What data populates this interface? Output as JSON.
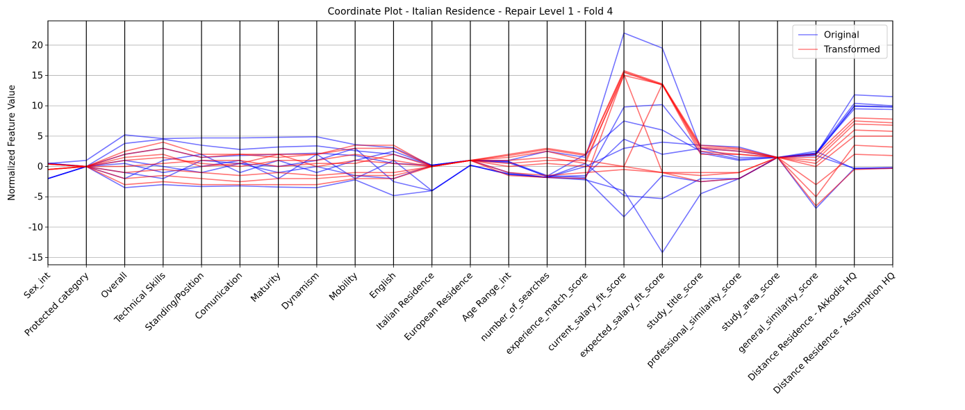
{
  "chart_data": {
    "type": "parallel_coordinates",
    "title": "Coordinate Plot - Italian Residence - Repair Level 1 - Fold 4",
    "ylabel": "Normalized Feature Value",
    "ylim": [
      -16.2,
      24.0
    ],
    "yticks": [
      -15,
      -10,
      -5,
      0,
      5,
      10,
      15,
      20
    ],
    "grid": true,
    "legend_position": "top-right",
    "axes": [
      "Sex_int",
      "Protected category",
      "Overall",
      "Technical Skills",
      "Standing/Position",
      "Comunication",
      "Maturity",
      "Dynamism",
      "Mobility",
      "English",
      "Italian Residence",
      "European Residence",
      "Age Range_int",
      "number_of_searches",
      "experience_match_score",
      "current_salary_fit_score",
      "expected_salary_fit_score",
      "study_title_score",
      "professional_similarity_score",
      "study_area_score",
      "general_similarity_score",
      "Distance Residence - Akkodis HQ",
      "Distance Residence - Assumption HQ"
    ],
    "series": [
      {
        "name": "Original",
        "color": "#0000ff",
        "lines": [
          [
            0.5,
            1.0,
            5.2,
            4.6,
            4.7,
            4.7,
            4.8,
            4.9,
            3.6,
            3.1,
            0.2,
            1.0,
            1.0,
            2.5,
            1.5,
            22.0,
            19.5,
            3.0,
            2.5,
            1.5,
            2.0,
            11.8,
            11.5
          ],
          [
            -2.0,
            0.0,
            3.8,
            4.5,
            3.5,
            2.8,
            3.2,
            3.4,
            2.6,
            2.0,
            0.2,
            1.0,
            0.8,
            -1.5,
            -1.8,
            9.8,
            10.2,
            2.2,
            1.0,
            1.5,
            2.2,
            10.4,
            10.0
          ],
          [
            0.5,
            0.0,
            2.0,
            3.0,
            1.5,
            1.8,
            2.0,
            2.2,
            1.8,
            0.5,
            0.2,
            1.0,
            0.6,
            -1.6,
            2.0,
            7.5,
            6.0,
            2.5,
            1.2,
            1.5,
            2.0,
            10.0,
            9.8
          ],
          [
            -2.0,
            0.0,
            -3.5,
            -3.0,
            -3.3,
            -3.2,
            -3.4,
            -3.5,
            -2.2,
            -4.8,
            -4.0,
            0.2,
            -1.3,
            -1.8,
            -2.0,
            -8.3,
            -1.5,
            -2.5,
            -2.0,
            1.5,
            -6.9,
            -0.3,
            -0.2
          ],
          [
            0.5,
            0.0,
            -1.0,
            -2.0,
            1.0,
            0.5,
            -1.0,
            0.0,
            -1.5,
            -2.0,
            0.2,
            1.0,
            -1.0,
            -1.8,
            -2.2,
            -4.0,
            -14.2,
            -4.5,
            -2.0,
            1.5,
            2.0,
            9.9,
            9.8
          ],
          [
            -2.0,
            0.0,
            1.0,
            0.0,
            -1.0,
            0.5,
            0.0,
            1.0,
            3.0,
            -2.5,
            -4.0,
            0.2,
            -1.3,
            -1.8,
            0.0,
            3.0,
            4.0,
            3.5,
            3.2,
            1.5,
            2.5,
            -0.4,
            -0.3
          ],
          [
            0.5,
            0.0,
            -2.0,
            1.0,
            2.0,
            -1.0,
            1.0,
            -1.0,
            1.0,
            2.5,
            0.2,
            1.0,
            0.8,
            -1.7,
            -1.5,
            4.5,
            2.0,
            3.0,
            1.5,
            1.5,
            1.8,
            -0.3,
            -0.2
          ],
          [
            -2.0,
            0.0,
            0.5,
            -1.0,
            0.0,
            1.0,
            -2.0,
            2.0,
            -2.0,
            1.0,
            -4.0,
            0.2,
            -1.2,
            -1.8,
            0.5,
            -4.8,
            -5.3,
            -2.0,
            -2.0,
            1.5,
            2.2,
            9.5,
            9.4
          ]
        ]
      },
      {
        "name": "Transformed",
        "color": "#ff0000",
        "lines": [
          [
            0.4,
            0.0,
            2.5,
            4.0,
            2.0,
            2.0,
            2.0,
            2.0,
            3.5,
            3.5,
            0.0,
            1.0,
            2.0,
            3.0,
            2.0,
            15.8,
            13.6,
            3.5,
            3.0,
            1.5,
            2.0,
            8.0,
            7.8
          ],
          [
            -0.5,
            0.0,
            -3.0,
            -2.5,
            -3.0,
            -3.0,
            -3.0,
            -3.0,
            -2.0,
            -2.0,
            0.0,
            1.0,
            -1.0,
            -1.5,
            -1.0,
            -0.5,
            -1.0,
            -2.5,
            -2.0,
            1.5,
            -6.5,
            -0.5,
            -0.3
          ],
          [
            0.4,
            0.0,
            1.0,
            1.5,
            0.5,
            0.0,
            1.0,
            1.0,
            2.0,
            1.0,
            0.0,
            1.0,
            1.5,
            2.5,
            1.0,
            15.0,
            13.5,
            2.0,
            2.0,
            1.5,
            0.0,
            5.0,
            5.0
          ],
          [
            -0.5,
            0.0,
            -1.0,
            -0.5,
            -1.0,
            -1.5,
            -1.0,
            -1.5,
            -1.0,
            -1.0,
            0.0,
            1.0,
            0.0,
            0.5,
            0.0,
            0.0,
            -1.0,
            -1.0,
            -1.0,
            1.5,
            -3.0,
            2.0,
            1.8
          ],
          [
            0.4,
            0.0,
            0.0,
            0.5,
            1.0,
            1.0,
            0.0,
            0.5,
            0.5,
            2.0,
            0.0,
            1.0,
            1.0,
            1.5,
            0.5,
            15.5,
            13.4,
            3.0,
            2.5,
            1.5,
            1.0,
            7.0,
            6.8
          ],
          [
            -0.5,
            0.0,
            2.0,
            3.0,
            1.5,
            2.0,
            1.5,
            2.0,
            3.0,
            3.0,
            0.0,
            1.0,
            -1.5,
            -1.8,
            -2.0,
            15.2,
            -1.0,
            -1.5,
            -1.0,
            1.5,
            -5.0,
            3.5,
            3.2
          ],
          [
            0.4,
            0.0,
            -2.0,
            -1.5,
            -2.0,
            -2.5,
            -2.0,
            -2.0,
            -1.5,
            -1.5,
            0.0,
            1.0,
            0.5,
            1.0,
            1.0,
            0.0,
            13.6,
            2.5,
            2.0,
            1.5,
            0.5,
            6.0,
            5.8
          ],
          [
            -0.5,
            0.0,
            1.5,
            2.0,
            0.0,
            0.5,
            2.0,
            0.0,
            1.0,
            0.5,
            0.0,
            1.0,
            1.8,
            2.8,
            1.8,
            15.6,
            13.5,
            3.2,
            2.8,
            1.5,
            1.5,
            7.5,
            7.2
          ]
        ]
      }
    ]
  }
}
